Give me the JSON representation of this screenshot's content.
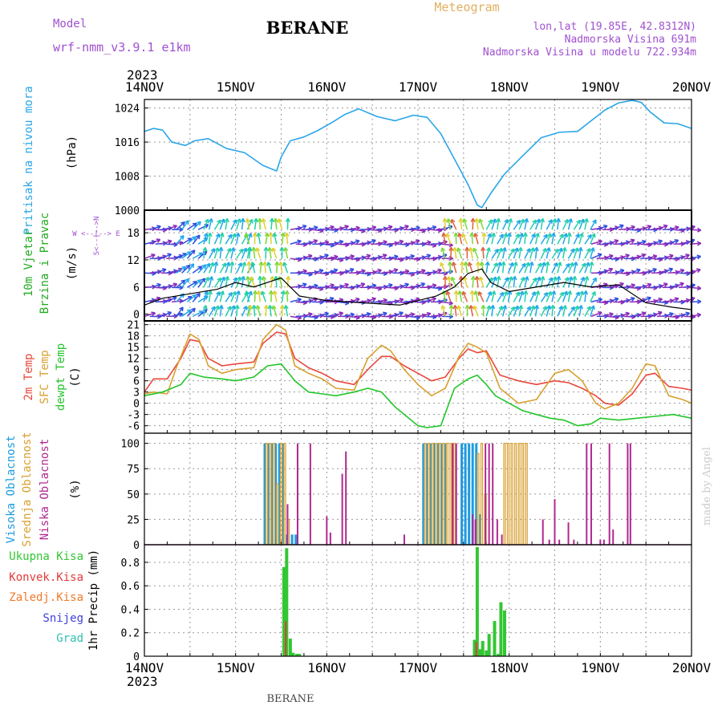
{
  "header": {
    "model_label": "Model",
    "model_name": "wrf-nmm_v3.9.1 e1km",
    "station": "BERANE",
    "product": "Meteogram",
    "coords": "lon,lat (19.85E, 42.8312N)",
    "elev": "Nadmorska Visina 691m",
    "elev_model": "Nadmorska Visina u modelu 722.934m",
    "year_top": "2023",
    "year_bottom": "2023",
    "footer_station": "BERANE",
    "credit": "made by Angel"
  },
  "colors": {
    "pressure": "#2aa6e8",
    "temp2m": "#e8473c",
    "sfc_temp": "#d8a030",
    "dewpoint": "#22c62a",
    "cloud_high": "#1e9be0",
    "cloud_mid": "#d9a030",
    "cloud_low": "#b02890",
    "precip_total": "#33c633",
    "precip_conv": "#e23a3a",
    "precip_frozen": "#f07a2a",
    "precip_snow": "#4040e0",
    "precip_hail": "#30c0b0",
    "wind_label": "#22aa22",
    "credit": "#cccccc"
  },
  "x_axis": {
    "start_day": 14,
    "end_day": 20,
    "tick_labels": [
      "14NOV",
      "15NOV",
      "16NOV",
      "17NOV",
      "18NOV",
      "19NOV",
      "20NOV"
    ]
  },
  "panels": {
    "pressure": {
      "label_main": "Pritisak na nivou mora",
      "unit": "(hPa)",
      "yticks": [
        1000,
        1008,
        1016,
        1024
      ],
      "ylim": [
        1000,
        1026
      ]
    },
    "wind": {
      "label_main_1": "10m Vjetar",
      "label_main_2": "Brzina i Pravac",
      "unit": "(m/s)",
      "compass": "W <--|--> E",
      "compass_ns": "S<--|-->N",
      "yticks": [
        0,
        6,
        12,
        18
      ],
      "ylim": [
        -1.5,
        23
      ]
    },
    "temp": {
      "label_1": "2m Temp",
      "label_2": "SFC Temp",
      "label_3": "dewpt Temp",
      "unit": "(C)",
      "yticks": [
        -6,
        -3,
        0,
        3,
        6,
        9,
        12,
        15,
        18,
        21
      ],
      "ylim": [
        -8,
        22
      ]
    },
    "cloud": {
      "label_1": "Visoka Oblacnost",
      "label_2": "Srednja Oblacnost",
      "label_3": "Niska Oblacnost",
      "unit": "(%)",
      "yticks": [
        0,
        25,
        50,
        75,
        100
      ],
      "ylim": [
        0,
        110
      ]
    },
    "precip": {
      "label_total": "Ukupna Kisa",
      "label_conv": "Konvek.Kisa",
      "label_frozen": "Zaledj.Kisa",
      "label_snow": "Snijeg",
      "label_hail": "Grad",
      "unit": "1hr Precip (mm)",
      "yticks": [
        0,
        0.2,
        0.4,
        0.6,
        0.8
      ],
      "ylim": [
        0,
        0.95
      ]
    }
  },
  "chart_data": [
    {
      "type": "line",
      "title": "Pritisak na nivou mora",
      "ylabel": "(hPa)",
      "ylim": [
        1000,
        1026
      ],
      "series": [
        {
          "name": "Pritisak na nivou mora",
          "x": [
            14.0,
            14.1,
            14.2,
            14.3,
            14.45,
            14.55,
            14.7,
            14.9,
            15.1,
            15.3,
            15.45,
            15.5,
            15.6,
            15.75,
            15.9,
            16.05,
            16.2,
            16.35,
            16.55,
            16.75,
            16.95,
            17.1,
            17.25,
            17.4,
            17.55,
            17.65,
            17.7,
            17.8,
            17.95,
            18.15,
            18.35,
            18.55,
            18.75,
            18.9,
            19.05,
            19.2,
            19.35,
            19.45,
            19.55,
            19.7,
            19.85,
            20.0
          ],
          "y": [
            1018.5,
            1019.2,
            1018.8,
            1016.0,
            1015.2,
            1016.3,
            1016.8,
            1014.5,
            1013.5,
            1010.5,
            1009.2,
            1012.5,
            1016.3,
            1017.2,
            1018.7,
            1020.5,
            1022.5,
            1023.8,
            1022.0,
            1021.0,
            1022.3,
            1021.8,
            1018.0,
            1012.0,
            1006.0,
            1001.2,
            1000.6,
            1004.0,
            1008.5,
            1012.8,
            1017.0,
            1018.3,
            1018.5,
            1021.0,
            1023.5,
            1025.2,
            1025.8,
            1025.3,
            1023.0,
            1020.5,
            1020.3,
            1019.2
          ]
        }
      ]
    },
    {
      "type": "line",
      "title": "10m Vjetar Brzina i Pravac",
      "ylabel": "(m/s)",
      "ylim": [
        -1.5,
        23
      ],
      "series": [
        {
          "name": "wind speed",
          "x": [
            14.0,
            14.2,
            14.5,
            14.8,
            15.0,
            15.2,
            15.5,
            15.7,
            16.0,
            16.4,
            16.8,
            17.0,
            17.2,
            17.4,
            17.55,
            17.7,
            17.8,
            18.0,
            18.3,
            18.6,
            18.9,
            19.2,
            19.5,
            19.8,
            20.0
          ],
          "y": [
            2.0,
            3.5,
            4.5,
            5.5,
            7.0,
            6.0,
            8.0,
            4.0,
            3.0,
            2.5,
            2.0,
            3.0,
            4.0,
            6.0,
            9.0,
            10.0,
            7.0,
            5.0,
            6.0,
            7.0,
            6.0,
            6.5,
            2.5,
            1.5,
            1.0
          ]
        }
      ]
    },
    {
      "type": "line",
      "title": "2m Temp / SFC Temp / dewpt Temp",
      "ylabel": "(C)",
      "ylim": [
        -8,
        22
      ],
      "series": [
        {
          "name": "2m Temp",
          "x": [
            14.0,
            14.1,
            14.25,
            14.4,
            14.5,
            14.6,
            14.7,
            14.85,
            15.0,
            15.2,
            15.3,
            15.45,
            15.55,
            15.65,
            15.8,
            15.95,
            16.1,
            16.3,
            16.45,
            16.6,
            16.7,
            16.85,
            17.0,
            17.15,
            17.3,
            17.45,
            17.55,
            17.65,
            17.75,
            17.9,
            18.1,
            18.3,
            18.5,
            18.65,
            18.8,
            18.95,
            19.05,
            19.2,
            19.35,
            19.5,
            19.6,
            19.75,
            19.9,
            20.0
          ],
          "y": [
            3.0,
            6.5,
            6.5,
            12.0,
            17.0,
            16.5,
            12.0,
            10.0,
            10.5,
            11.0,
            16.0,
            19.0,
            18.5,
            12.0,
            9.5,
            8.0,
            6.0,
            5.0,
            9.0,
            12.5,
            12.5,
            10.0,
            8.0,
            6.0,
            7.0,
            12.0,
            14.5,
            13.5,
            14.0,
            7.5,
            6.0,
            5.0,
            6.0,
            5.5,
            4.0,
            2.0,
            0.0,
            -0.5,
            2.5,
            7.5,
            8.0,
            4.5,
            4.0,
            3.5
          ]
        },
        {
          "name": "SFC Temp",
          "x": [
            14.0,
            14.1,
            14.25,
            14.35,
            14.5,
            14.6,
            14.7,
            14.85,
            15.0,
            15.2,
            15.3,
            15.45,
            15.55,
            15.65,
            15.8,
            15.95,
            16.1,
            16.3,
            16.45,
            16.6,
            16.7,
            16.85,
            17.0,
            17.15,
            17.3,
            17.45,
            17.55,
            17.65,
            17.75,
            17.9,
            18.1,
            18.3,
            18.5,
            18.65,
            18.8,
            18.95,
            19.05,
            19.2,
            19.35,
            19.5,
            19.6,
            19.75,
            19.9,
            20.0
          ],
          "y": [
            2.5,
            3.0,
            2.5,
            9.5,
            18.5,
            17.0,
            10.0,
            8.0,
            9.0,
            9.5,
            17.0,
            21.0,
            19.5,
            10.0,
            8.0,
            6.5,
            4.0,
            3.5,
            12.0,
            15.5,
            14.0,
            9.0,
            5.0,
            2.0,
            4.0,
            12.5,
            16.0,
            15.0,
            13.5,
            4.0,
            0.0,
            1.0,
            8.0,
            9.0,
            6.0,
            0.0,
            -1.5,
            0.0,
            4.0,
            10.5,
            10.0,
            2.0,
            1.0,
            0.0
          ]
        },
        {
          "name": "dewpt Temp",
          "x": [
            14.0,
            14.2,
            14.4,
            14.5,
            14.65,
            14.85,
            15.0,
            15.2,
            15.35,
            15.5,
            15.65,
            15.8,
            15.95,
            16.1,
            16.3,
            16.45,
            16.6,
            16.75,
            16.9,
            17.0,
            17.1,
            17.25,
            17.4,
            17.55,
            17.65,
            17.75,
            17.85,
            18.0,
            18.15,
            18.3,
            18.45,
            18.6,
            18.75,
            18.9,
            19.0,
            19.2,
            19.4,
            19.6,
            19.8,
            20.0
          ],
          "y": [
            2.0,
            3.0,
            5.0,
            8.0,
            7.0,
            6.5,
            6.0,
            7.0,
            10.0,
            10.5,
            6.0,
            3.0,
            2.5,
            2.0,
            3.0,
            4.0,
            3.0,
            -1.0,
            -4.0,
            -6.0,
            -6.5,
            -6.0,
            4.0,
            6.5,
            7.5,
            5.0,
            2.0,
            0.0,
            -2.0,
            -3.0,
            -4.0,
            -4.5,
            -6.0,
            -5.5,
            -4.0,
            -4.5,
            -4.0,
            -3.5,
            -3.0,
            -4.0
          ]
        }
      ]
    },
    {
      "type": "bar",
      "title": "Visoka / Srednja / Niska Oblacnost",
      "ylabel": "(%)",
      "ylim": [
        0,
        110
      ],
      "series": [
        {
          "name": "Visoka Oblacnost",
          "x": [
            15.32,
            15.36,
            15.4,
            15.44,
            15.48,
            15.52,
            15.56,
            15.62,
            15.66,
            17.06,
            17.1,
            17.14,
            17.18,
            17.22,
            17.26,
            17.3,
            17.48,
            17.52,
            17.56,
            17.6,
            17.64,
            17.68
          ],
          "values": [
            100,
            100,
            100,
            100,
            100,
            100,
            10,
            10,
            10,
            100,
            100,
            100,
            100,
            100,
            100,
            100,
            100,
            100,
            100,
            100,
            100,
            30
          ]
        },
        {
          "name": "Srednja Oblacnost",
          "x": [
            15.34,
            15.38,
            15.42,
            15.46,
            15.5,
            15.54,
            15.58,
            17.08,
            17.12,
            17.16,
            17.2,
            17.24,
            17.28,
            17.32,
            17.36,
            17.4,
            17.66,
            17.7,
            17.74,
            17.95,
            17.99,
            18.03,
            18.07,
            18.11,
            18.15,
            18.19
          ],
          "values": [
            100,
            100,
            100,
            60,
            100,
            100,
            25,
            100,
            100,
            100,
            100,
            100,
            100,
            100,
            100,
            100,
            90,
            100,
            50,
            100,
            100,
            100,
            100,
            100,
            100,
            100
          ]
        },
        {
          "name": "Niska Oblacnost",
          "x": [
            15.57,
            15.68,
            15.82,
            16.0,
            16.04,
            16.17,
            16.21,
            16.85,
            17.38,
            17.42,
            17.6,
            17.63,
            17.74,
            17.78,
            17.82,
            17.87,
            17.92,
            18.37,
            18.44,
            18.5,
            18.55,
            18.65,
            18.71,
            18.85,
            18.9,
            19.0,
            19.04,
            19.1,
            19.14,
            19.3,
            19.33
          ],
          "values": [
            40,
            100,
            100,
            28,
            12,
            70,
            92,
            10,
            100,
            100,
            30,
            25,
            100,
            100,
            100,
            25,
            10,
            25,
            5,
            45,
            5,
            22,
            5,
            100,
            100,
            5,
            5,
            100,
            15,
            100,
            100
          ]
        }
      ]
    },
    {
      "type": "bar",
      "title": "1hr Precip",
      "ylabel": "1hr Precip (mm)",
      "ylim": [
        0,
        0.95
      ],
      "series": [
        {
          "name": "Ukupna Kisa",
          "x": [
            15.53,
            15.56,
            15.6,
            15.63,
            15.67,
            15.7,
            17.62,
            17.65,
            17.68,
            17.71,
            17.75,
            17.78,
            17.84,
            17.88,
            17.91,
            17.95
          ],
          "values": [
            0.76,
            0.92,
            0.15,
            0.03,
            0.02,
            0.02,
            0.14,
            0.93,
            0.06,
            0.13,
            0.05,
            0.19,
            0.3,
            0.02,
            0.46,
            0.39
          ]
        },
        {
          "name": "Konvek.Kisa",
          "x": [
            15.55,
            17.64
          ],
          "values": [
            0.3,
            0.12
          ]
        }
      ]
    }
  ]
}
